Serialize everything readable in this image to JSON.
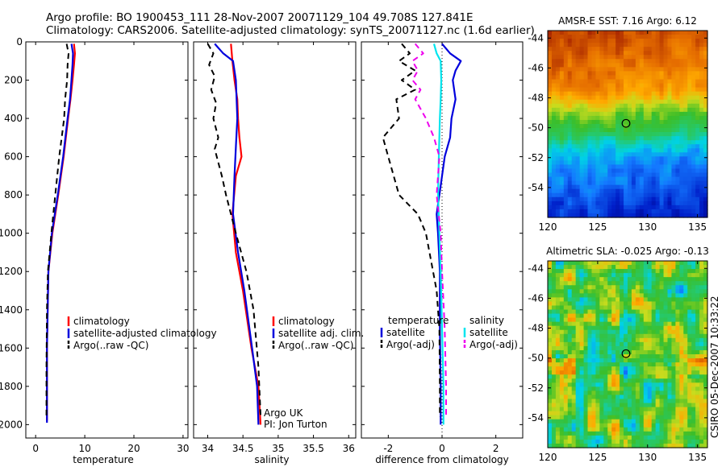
{
  "header": {
    "line1": "Argo profile: BO 1900453_111 28-Nov-2007 20071129_104 49.708S 127.841E",
    "line2": "Climatology: CARS2006. Satellite-adjusted climatology: synTS_20071127.nc (1.6d earlier)"
  },
  "side_note": "CSIRO 05-Dec-2007 10:33:22",
  "colors": {
    "red": "#ff0000",
    "blue": "#0000dd",
    "black": "#000000",
    "cyan": "#00e5ee",
    "magenta": "#ee00ee"
  },
  "chart_data": [
    {
      "type": "line",
      "xlabel": "temperature",
      "xlim": [
        -2,
        31
      ],
      "xticks": [
        0,
        10,
        20,
        30
      ],
      "ylim": [
        0,
        2070
      ],
      "yticks": [
        0,
        200,
        400,
        600,
        800,
        1000,
        1200,
        1400,
        1600,
        1800,
        2000
      ],
      "series": [
        {
          "name": "climatology",
          "color": "red",
          "dash": false,
          "x": [
            7.8,
            8.0,
            7.8,
            7.5,
            7.1,
            6.6,
            5.7,
            4.6,
            3.4,
            2.6,
            2.3,
            2.3
          ],
          "y": [
            10,
            60,
            120,
            200,
            300,
            400,
            600,
            800,
            1000,
            1200,
            1600,
            1980
          ]
        },
        {
          "name": "satellite-adjusted climatology",
          "color": "blue",
          "dash": false,
          "x": [
            7.3,
            7.6,
            7.5,
            7.3,
            7.0,
            6.5,
            5.6,
            4.5,
            3.3,
            2.6,
            2.3,
            2.3
          ],
          "y": [
            10,
            60,
            120,
            200,
            300,
            400,
            600,
            800,
            1000,
            1200,
            1600,
            1990
          ]
        },
        {
          "name": "Argo(..raw -QC)",
          "color": "black",
          "dash": true,
          "x": [
            6.3,
            6.7,
            6.5,
            6.4,
            6.0,
            5.8,
            5.3,
            4.8,
            4.0,
            3.2,
            2.5,
            2.3,
            2.2,
            2.2
          ],
          "y": [
            10,
            60,
            120,
            200,
            300,
            400,
            500,
            600,
            800,
            1000,
            1200,
            1400,
            1700,
            1960
          ]
        }
      ],
      "legend": [
        "climatology",
        "satellite-adjusted climatology",
        "Argo(..raw -QC)"
      ]
    },
    {
      "type": "line",
      "xlabel": "salinity",
      "xlim": [
        33.8,
        36.1
      ],
      "xticks": [
        34,
        34.5,
        35,
        35.5,
        36
      ],
      "xticklabels": [
        "34",
        "34.5",
        "35",
        "35.5",
        "36"
      ],
      "ylim": [
        0,
        2070
      ],
      "series": [
        {
          "name": "climatology",
          "color": "red",
          "dash": false,
          "x": [
            34.33,
            34.35,
            34.38,
            34.42,
            34.43,
            34.45,
            34.48,
            34.4,
            34.35,
            34.4,
            34.5,
            34.62,
            34.72,
            34.75
          ],
          "y": [
            10,
            100,
            200,
            300,
            400,
            500,
            600,
            700,
            900,
            1100,
            1300,
            1600,
            1800,
            2000
          ]
        },
        {
          "name": "satellite adj. clim.",
          "color": "blue",
          "dash": false,
          "x": [
            34.1,
            34.22,
            34.36,
            34.4,
            34.41,
            34.42,
            34.4,
            34.38,
            34.36,
            34.43,
            34.52,
            34.63,
            34.7,
            34.72
          ],
          "y": [
            10,
            60,
            100,
            200,
            300,
            400,
            550,
            700,
            900,
            1100,
            1300,
            1600,
            1800,
            2000
          ]
        },
        {
          "name": "Argo(..raw -QC)",
          "color": "black",
          "dash": true,
          "x": [
            34.0,
            34.08,
            34.02,
            34.1,
            34.05,
            34.12,
            34.08,
            34.15,
            34.1,
            34.2,
            34.26,
            34.4,
            34.55,
            34.65,
            34.72,
            34.75
          ],
          "y": [
            10,
            60,
            120,
            180,
            250,
            320,
            400,
            500,
            560,
            700,
            800,
            1000,
            1200,
            1400,
            1700,
            1950
          ]
        }
      ],
      "legend": [
        "climatology",
        "satellite adj. clim.",
        "Argo(..raw -QC)"
      ],
      "annotations": [
        "Argo UK",
        "PI: Jon Turton"
      ]
    },
    {
      "type": "line",
      "xlabel": "difference from climatology",
      "xlim": [
        -3,
        3
      ],
      "xticks": [
        -2,
        0,
        2
      ],
      "xticklabels": [
        "-2",
        "0",
        "2"
      ],
      "ylim": [
        0,
        2070
      ],
      "series": [
        {
          "name": "temperature satellite",
          "color": "blue",
          "dash": false,
          "x": [
            0.0,
            0.3,
            0.7,
            0.5,
            0.4,
            0.5,
            0.35,
            0.3,
            0.1,
            -0.1,
            -0.2,
            -0.15,
            -0.08,
            -0.08,
            -0.05,
            -0.05
          ],
          "y": [
            10,
            60,
            100,
            150,
            200,
            300,
            400,
            500,
            600,
            800,
            900,
            1000,
            1200,
            1500,
            1800,
            2000
          ]
        },
        {
          "name": "temperature Argo(-adj)",
          "color": "black",
          "dash": true,
          "x": [
            -1.5,
            -1.2,
            -1.6,
            -1.0,
            -1.5,
            -1.0,
            -1.7,
            -1.6,
            -2.2,
            -2.0,
            -1.6,
            -0.9,
            -0.6,
            -0.2,
            -0.1,
            -0.08,
            -0.08
          ],
          "y": [
            10,
            60,
            100,
            150,
            200,
            250,
            300,
            400,
            500,
            600,
            800,
            900,
            1000,
            1300,
            1500,
            1800,
            1960
          ]
        },
        {
          "name": "salinity satellite",
          "color": "cyan",
          "dash": false,
          "x": [
            -0.3,
            -0.2,
            -0.05,
            -0.03,
            -0.05,
            -0.08,
            -0.12,
            -0.15,
            -0.1,
            -0.05,
            0.0,
            0.05,
            0.05
          ],
          "y": [
            10,
            60,
            100,
            200,
            300,
            400,
            600,
            800,
            1000,
            1200,
            1500,
            1800,
            2000
          ]
        },
        {
          "name": "salinity Argo(-adj)",
          "color": "magenta",
          "dash": true,
          "x": [
            -1.0,
            -0.7,
            -1.1,
            -0.9,
            -1.1,
            -0.8,
            -1.0,
            -0.6,
            -0.3,
            -0.1,
            -0.2,
            -0.05,
            0.0,
            0.1,
            0.15,
            0.15
          ],
          "y": [
            10,
            60,
            100,
            150,
            200,
            250,
            300,
            400,
            500,
            600,
            800,
            1000,
            1200,
            1500,
            1800,
            1960
          ]
        }
      ],
      "legend": [
        {
          "group": "temperature",
          "items": [
            "satellite",
            "Argo(-adj)"
          ]
        },
        {
          "group": "salinity",
          "items": [
            "satellite",
            "Argo(-adj)"
          ]
        }
      ]
    },
    {
      "type": "heatmap",
      "title": "AMSR-E SST: 7.16 Argo: 6.12",
      "xlim": [
        120,
        136
      ],
      "ylim": [
        -56,
        -43.5
      ],
      "xticks": [
        120,
        125,
        130,
        135
      ],
      "yticks": [
        -54,
        -52,
        -50,
        -48,
        -46,
        -44
      ],
      "marker": {
        "lon": 127.841,
        "lat": -49.708
      }
    },
    {
      "type": "heatmap",
      "title": "Altimetric SLA: -0.025 Argo: -0.13",
      "xlim": [
        120,
        136
      ],
      "ylim": [
        -56,
        -43.5
      ],
      "xticks": [
        120,
        125,
        130,
        135
      ],
      "yticks": [
        -54,
        -52,
        -50,
        -48,
        -46,
        -44
      ],
      "marker": {
        "lon": 127.841,
        "lat": -49.708
      }
    }
  ]
}
